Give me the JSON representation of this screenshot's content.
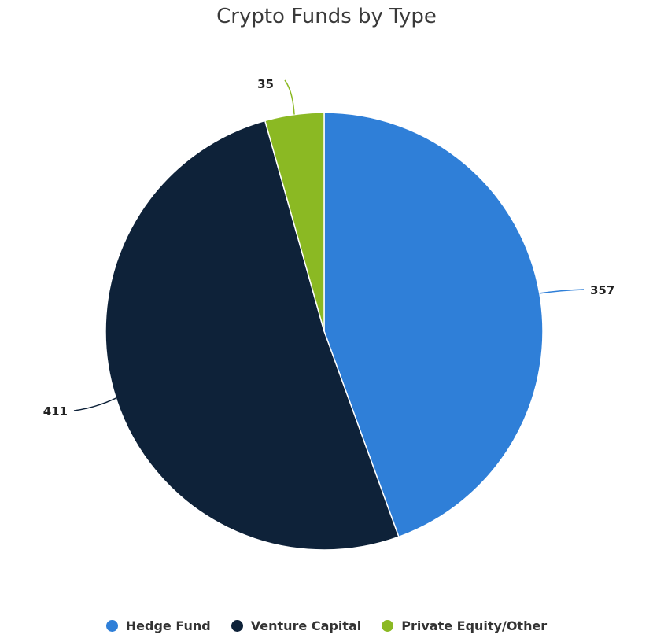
{
  "chart_data": {
    "type": "pie",
    "title": "Crypto Funds by Type",
    "categories": [
      "Hedge Fund",
      "Venture Capital",
      "Private Equity/Other"
    ],
    "values": [
      357,
      411,
      35
    ],
    "colors": [
      "#2f7fd8",
      "#0e2239",
      "#8bb923"
    ],
    "legend": "bottom",
    "data_labels": true
  }
}
